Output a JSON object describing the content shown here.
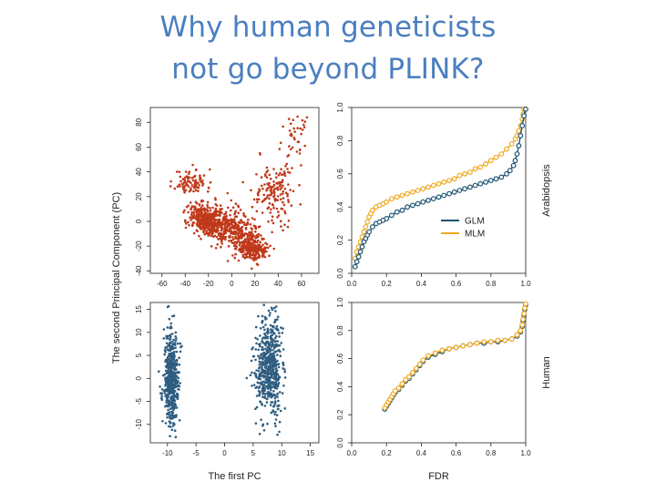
{
  "slide": {
    "title_line1": "Why human geneticists",
    "title_line2": "not go beyond PLINK?"
  },
  "colors": {
    "red": "#c0391b",
    "blue": "#2f5d80",
    "glm": "#1e5572",
    "mlm": "#f0a81e",
    "title": "#4a7fbf"
  },
  "chart_data": [
    {
      "id": "pca-arabidopsis",
      "type": "scatter",
      "xlim": [
        -70,
        75
      ],
      "ylim": [
        -42,
        92
      ],
      "xticks": [
        -60,
        -40,
        -20,
        0,
        20,
        40,
        60
      ],
      "yticks": [
        -40,
        -20,
        0,
        20,
        40,
        60,
        80
      ],
      "xlabel": "",
      "ylabel": "The second Principal Component (PC)",
      "color": "#c0391b",
      "clusters": [
        {
          "cx": -35,
          "cy": 32,
          "sx": 7,
          "sy": 5,
          "n": 90,
          "seed": 11
        },
        {
          "cx": -22,
          "cy": 0,
          "sx": 7,
          "sy": 6,
          "n": 340,
          "seed": 12
        },
        {
          "cx": 0,
          "cy": -5,
          "sx": 12,
          "sy": 8,
          "n": 360,
          "seed": 13
        },
        {
          "cx": 18,
          "cy": -22,
          "sx": 7,
          "sy": 5,
          "n": 220,
          "seed": 14
        },
        {
          "cx": 38,
          "cy": 25,
          "sx": 9,
          "sy": 13,
          "n": 150,
          "seed": 15
        },
        {
          "cx": 55,
          "cy": 68,
          "sx": 6,
          "sy": 9,
          "n": 35,
          "seed": 16
        }
      ]
    },
    {
      "id": "pca-human",
      "type": "scatter",
      "xlim": [
        -13,
        16.5
      ],
      "ylim": [
        -14,
        16.5
      ],
      "xticks": [
        -10,
        -5,
        0,
        5,
        10,
        15
      ],
      "yticks": [
        -10,
        -5,
        0,
        5,
        10,
        15
      ],
      "xlabel": "The first PC",
      "ylabel": "",
      "color": "#2f5d80",
      "clusters": [
        {
          "cx": -9.3,
          "cy": 0,
          "sx": 0.65,
          "sy": 5,
          "n": 520,
          "seed": 21
        },
        {
          "cx": 7.8,
          "cy": 2.5,
          "sx": 1.1,
          "sy": 5.2,
          "n": 560,
          "seed": 22
        }
      ]
    },
    {
      "id": "power-arabidopsis",
      "type": "line",
      "xlim": [
        0,
        1
      ],
      "ylim": [
        0,
        1
      ],
      "xticks": [
        0.0,
        0.2,
        0.4,
        0.6,
        0.8,
        1.0
      ],
      "yticks": [
        0.0,
        0.2,
        0.4,
        0.6,
        0.8,
        1.0
      ],
      "xlabel": "",
      "ylabel": "",
      "side_label": "Arabidopsis",
      "legend": [
        "GLM",
        "MLM"
      ],
      "series": [
        {
          "name": "MLM",
          "color": "#f0a81e",
          "x": [
            0.02,
            0.03,
            0.04,
            0.05,
            0.06,
            0.07,
            0.08,
            0.09,
            0.1,
            0.11,
            0.12,
            0.14,
            0.16,
            0.18,
            0.2,
            0.23,
            0.26,
            0.29,
            0.32,
            0.35,
            0.38,
            0.41,
            0.44,
            0.47,
            0.5,
            0.53,
            0.56,
            0.59,
            0.62,
            0.65,
            0.68,
            0.71,
            0.74,
            0.77,
            0.8,
            0.83,
            0.86,
            0.89,
            0.92,
            0.94,
            0.95,
            0.96,
            0.97,
            0.98,
            0.985,
            0.99
          ],
          "y": [
            0.09,
            0.13,
            0.16,
            0.19,
            0.22,
            0.25,
            0.28,
            0.31,
            0.34,
            0.36,
            0.38,
            0.4,
            0.41,
            0.42,
            0.43,
            0.45,
            0.46,
            0.47,
            0.48,
            0.49,
            0.5,
            0.51,
            0.52,
            0.53,
            0.54,
            0.55,
            0.56,
            0.57,
            0.59,
            0.6,
            0.61,
            0.63,
            0.64,
            0.66,
            0.68,
            0.7,
            0.72,
            0.75,
            0.78,
            0.81,
            0.83,
            0.86,
            0.89,
            0.93,
            0.96,
            0.99
          ]
        },
        {
          "name": "GLM",
          "color": "#1e5572",
          "x": [
            0.02,
            0.03,
            0.04,
            0.05,
            0.06,
            0.07,
            0.08,
            0.09,
            0.1,
            0.12,
            0.14,
            0.16,
            0.18,
            0.2,
            0.23,
            0.26,
            0.29,
            0.32,
            0.35,
            0.38,
            0.41,
            0.44,
            0.47,
            0.5,
            0.53,
            0.56,
            0.59,
            0.62,
            0.65,
            0.68,
            0.71,
            0.74,
            0.77,
            0.8,
            0.83,
            0.86,
            0.89,
            0.91,
            0.93,
            0.94,
            0.95,
            0.96,
            0.97,
            0.98,
            0.99,
            1.0
          ],
          "y": [
            0.04,
            0.07,
            0.1,
            0.13,
            0.16,
            0.19,
            0.21,
            0.23,
            0.25,
            0.28,
            0.3,
            0.31,
            0.32,
            0.33,
            0.35,
            0.37,
            0.38,
            0.4,
            0.41,
            0.42,
            0.43,
            0.44,
            0.45,
            0.46,
            0.47,
            0.48,
            0.49,
            0.5,
            0.51,
            0.52,
            0.53,
            0.54,
            0.55,
            0.56,
            0.57,
            0.58,
            0.6,
            0.62,
            0.65,
            0.68,
            0.72,
            0.77,
            0.83,
            0.89,
            0.95,
            0.99
          ]
        }
      ]
    },
    {
      "id": "power-human",
      "type": "line",
      "xlim": [
        0,
        1
      ],
      "ylim": [
        0,
        1
      ],
      "xticks": [
        0.0,
        0.2,
        0.4,
        0.6,
        0.8,
        1.0
      ],
      "yticks": [
        0.0,
        0.2,
        0.4,
        0.6,
        0.8,
        1.0
      ],
      "xlabel": "FDR",
      "ylabel": "",
      "side_label": "Human",
      "series": [
        {
          "name": "GLM",
          "color": "#1e5572",
          "x": [
            0.19,
            0.2,
            0.21,
            0.22,
            0.23,
            0.24,
            0.25,
            0.27,
            0.29,
            0.31,
            0.33,
            0.35,
            0.37,
            0.39,
            0.41,
            0.44,
            0.48,
            0.52,
            0.56,
            0.6,
            0.64,
            0.68,
            0.72,
            0.76,
            0.8,
            0.84,
            0.88,
            0.92,
            0.95,
            0.97,
            0.98,
            0.985,
            0.99,
            0.995,
            1.0
          ],
          "y": [
            0.24,
            0.26,
            0.28,
            0.3,
            0.32,
            0.34,
            0.36,
            0.38,
            0.41,
            0.44,
            0.46,
            0.49,
            0.52,
            0.55,
            0.58,
            0.61,
            0.63,
            0.65,
            0.67,
            0.68,
            0.69,
            0.7,
            0.71,
            0.71,
            0.72,
            0.72,
            0.73,
            0.74,
            0.76,
            0.79,
            0.83,
            0.87,
            0.91,
            0.95,
            0.98
          ]
        },
        {
          "name": "MLM",
          "color": "#f0a81e",
          "x": [
            0.19,
            0.2,
            0.21,
            0.22,
            0.23,
            0.24,
            0.25,
            0.27,
            0.29,
            0.31,
            0.33,
            0.35,
            0.37,
            0.39,
            0.41,
            0.44,
            0.48,
            0.52,
            0.56,
            0.6,
            0.64,
            0.68,
            0.72,
            0.76,
            0.8,
            0.84,
            0.88,
            0.92,
            0.95,
            0.97,
            0.98,
            0.985,
            0.99,
            0.995,
            1.0
          ],
          "y": [
            0.25,
            0.27,
            0.29,
            0.31,
            0.33,
            0.35,
            0.37,
            0.39,
            0.42,
            0.45,
            0.47,
            0.5,
            0.53,
            0.56,
            0.59,
            0.62,
            0.64,
            0.66,
            0.67,
            0.68,
            0.69,
            0.7,
            0.71,
            0.72,
            0.72,
            0.73,
            0.73,
            0.74,
            0.77,
            0.8,
            0.84,
            0.88,
            0.92,
            0.96,
            0.99
          ]
        }
      ]
    }
  ]
}
